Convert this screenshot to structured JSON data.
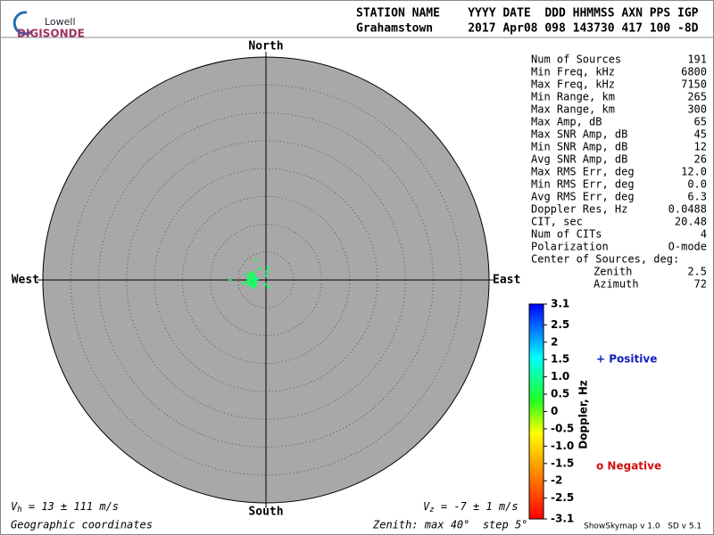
{
  "logo": {
    "line1": "Lowell",
    "line2": "DIGISONDE"
  },
  "header": {
    "line1": "STATION NAME    YYYY DATE  DDD HHMMSS AXN PPS IGP",
    "line2": "Grahamstown     2017 Apr08 098 143730 417 100 -8D"
  },
  "stats": {
    "rows": [
      [
        "Num of Sources",
        "191"
      ],
      [
        "Min Freq, kHz",
        "6800"
      ],
      [
        "Max Freq, kHz",
        "7150"
      ],
      [
        "Min Range, km",
        "265"
      ],
      [
        "Max Range, km",
        "300"
      ],
      [
        "Max Amp, dB",
        "65"
      ],
      [
        "Max SNR Amp, dB",
        "45"
      ],
      [
        "Min SNR Amp, dB",
        "12"
      ],
      [
        "Avg SNR Amp, dB",
        "26"
      ],
      [
        "Max RMS Err, deg",
        "12.0"
      ],
      [
        "Min RMS Err, deg",
        "0.0"
      ],
      [
        "Avg RMS Err, deg",
        "6.3"
      ],
      [
        "Doppler Res, Hz",
        "0.0488"
      ],
      [
        "CIT, sec",
        "20.48"
      ],
      [
        "Num of CITs",
        "4"
      ],
      [
        "Polarization",
        "O-mode"
      ]
    ]
  },
  "center": {
    "title": "Center of Sources, deg:",
    "rows": [
      [
        "Zenith",
        "2.5"
      ],
      [
        "Azimuth",
        "72"
      ]
    ]
  },
  "chart_data": {
    "type": "skymap",
    "directions": {
      "north": "North",
      "south": "South",
      "west": "West",
      "east": "East"
    },
    "zenith_lim": [
      0,
      40
    ],
    "zenith_step": 5,
    "points": {
      "x": [
        -2.4,
        -2.6,
        -2.2,
        -2.8,
        -2.0,
        -2.5,
        -3.0,
        -1.9,
        -2.3,
        -2.7,
        -2.1,
        -2.9,
        -2.4,
        -1.8,
        -3.2,
        -2.6,
        -2.2,
        -2.0,
        -2.8,
        -2.5,
        -3.4,
        -1.6,
        -2.3,
        -2.7,
        -6.4,
        0.3,
        0.3,
        -1.8,
        0.0,
        -0.2,
        -4.0,
        -1.2,
        0.2,
        -3.6,
        -2.4
      ],
      "y": [
        -0.3,
        0.2,
        -0.6,
        -0.1,
        0.4,
        -0.9,
        0.5,
        -0.2,
        0.8,
        -0.5,
        0.1,
        -0.8,
        0.6,
        -0.7,
        0.0,
        -1.1,
        1.0,
        -1.0,
        0.9,
        0.3,
        -0.4,
        0.2,
        -1.3,
        1.2,
        0.0,
        2.2,
        -1.3,
        3.5,
        0.8,
        -0.8,
        -0.6,
        2.0,
        1.5,
        0.9,
        1.4
      ],
      "doppler": [
        0.7,
        0.8,
        0.6,
        0.7,
        0.9,
        0.7,
        0.6,
        0.8,
        0.7,
        0.5,
        0.8,
        0.7,
        0.6,
        0.9,
        0.7,
        0.8,
        0.6,
        0.7,
        0.8,
        0.6,
        0.7,
        0.9,
        0.7,
        0.6,
        0.7,
        0.8,
        0.7,
        0.6,
        0.8,
        0.7,
        0.6,
        0.7,
        0.8,
        0.7,
        0.6
      ]
    },
    "colorbar": {
      "label": "Doppler, Hz",
      "lim": [
        -3.1,
        3.1
      ],
      "ticks": [
        3.1,
        2.5,
        2,
        1.5,
        {
          "value": 1,
          "label": "1.0"
        },
        0.5,
        0,
        -0.5,
        {
          "value": -1,
          "label": "-1.0"
        },
        -1.5,
        -2,
        -2.5,
        -3.1
      ]
    },
    "legend": {
      "positive": "+ Positive",
      "negative": "o Negative"
    }
  },
  "footer": {
    "vh": [
      "V",
      "h",
      " = 13 ± 111 m/s"
    ],
    "vz": [
      "V",
      "z",
      " = -7 ± 1 m/s"
    ],
    "coords": "Geographic coordinates",
    "zenith": "Zenith: max 40°  step 5°",
    "version": "ShowSkymap v 1.0   SD v 5.1"
  }
}
